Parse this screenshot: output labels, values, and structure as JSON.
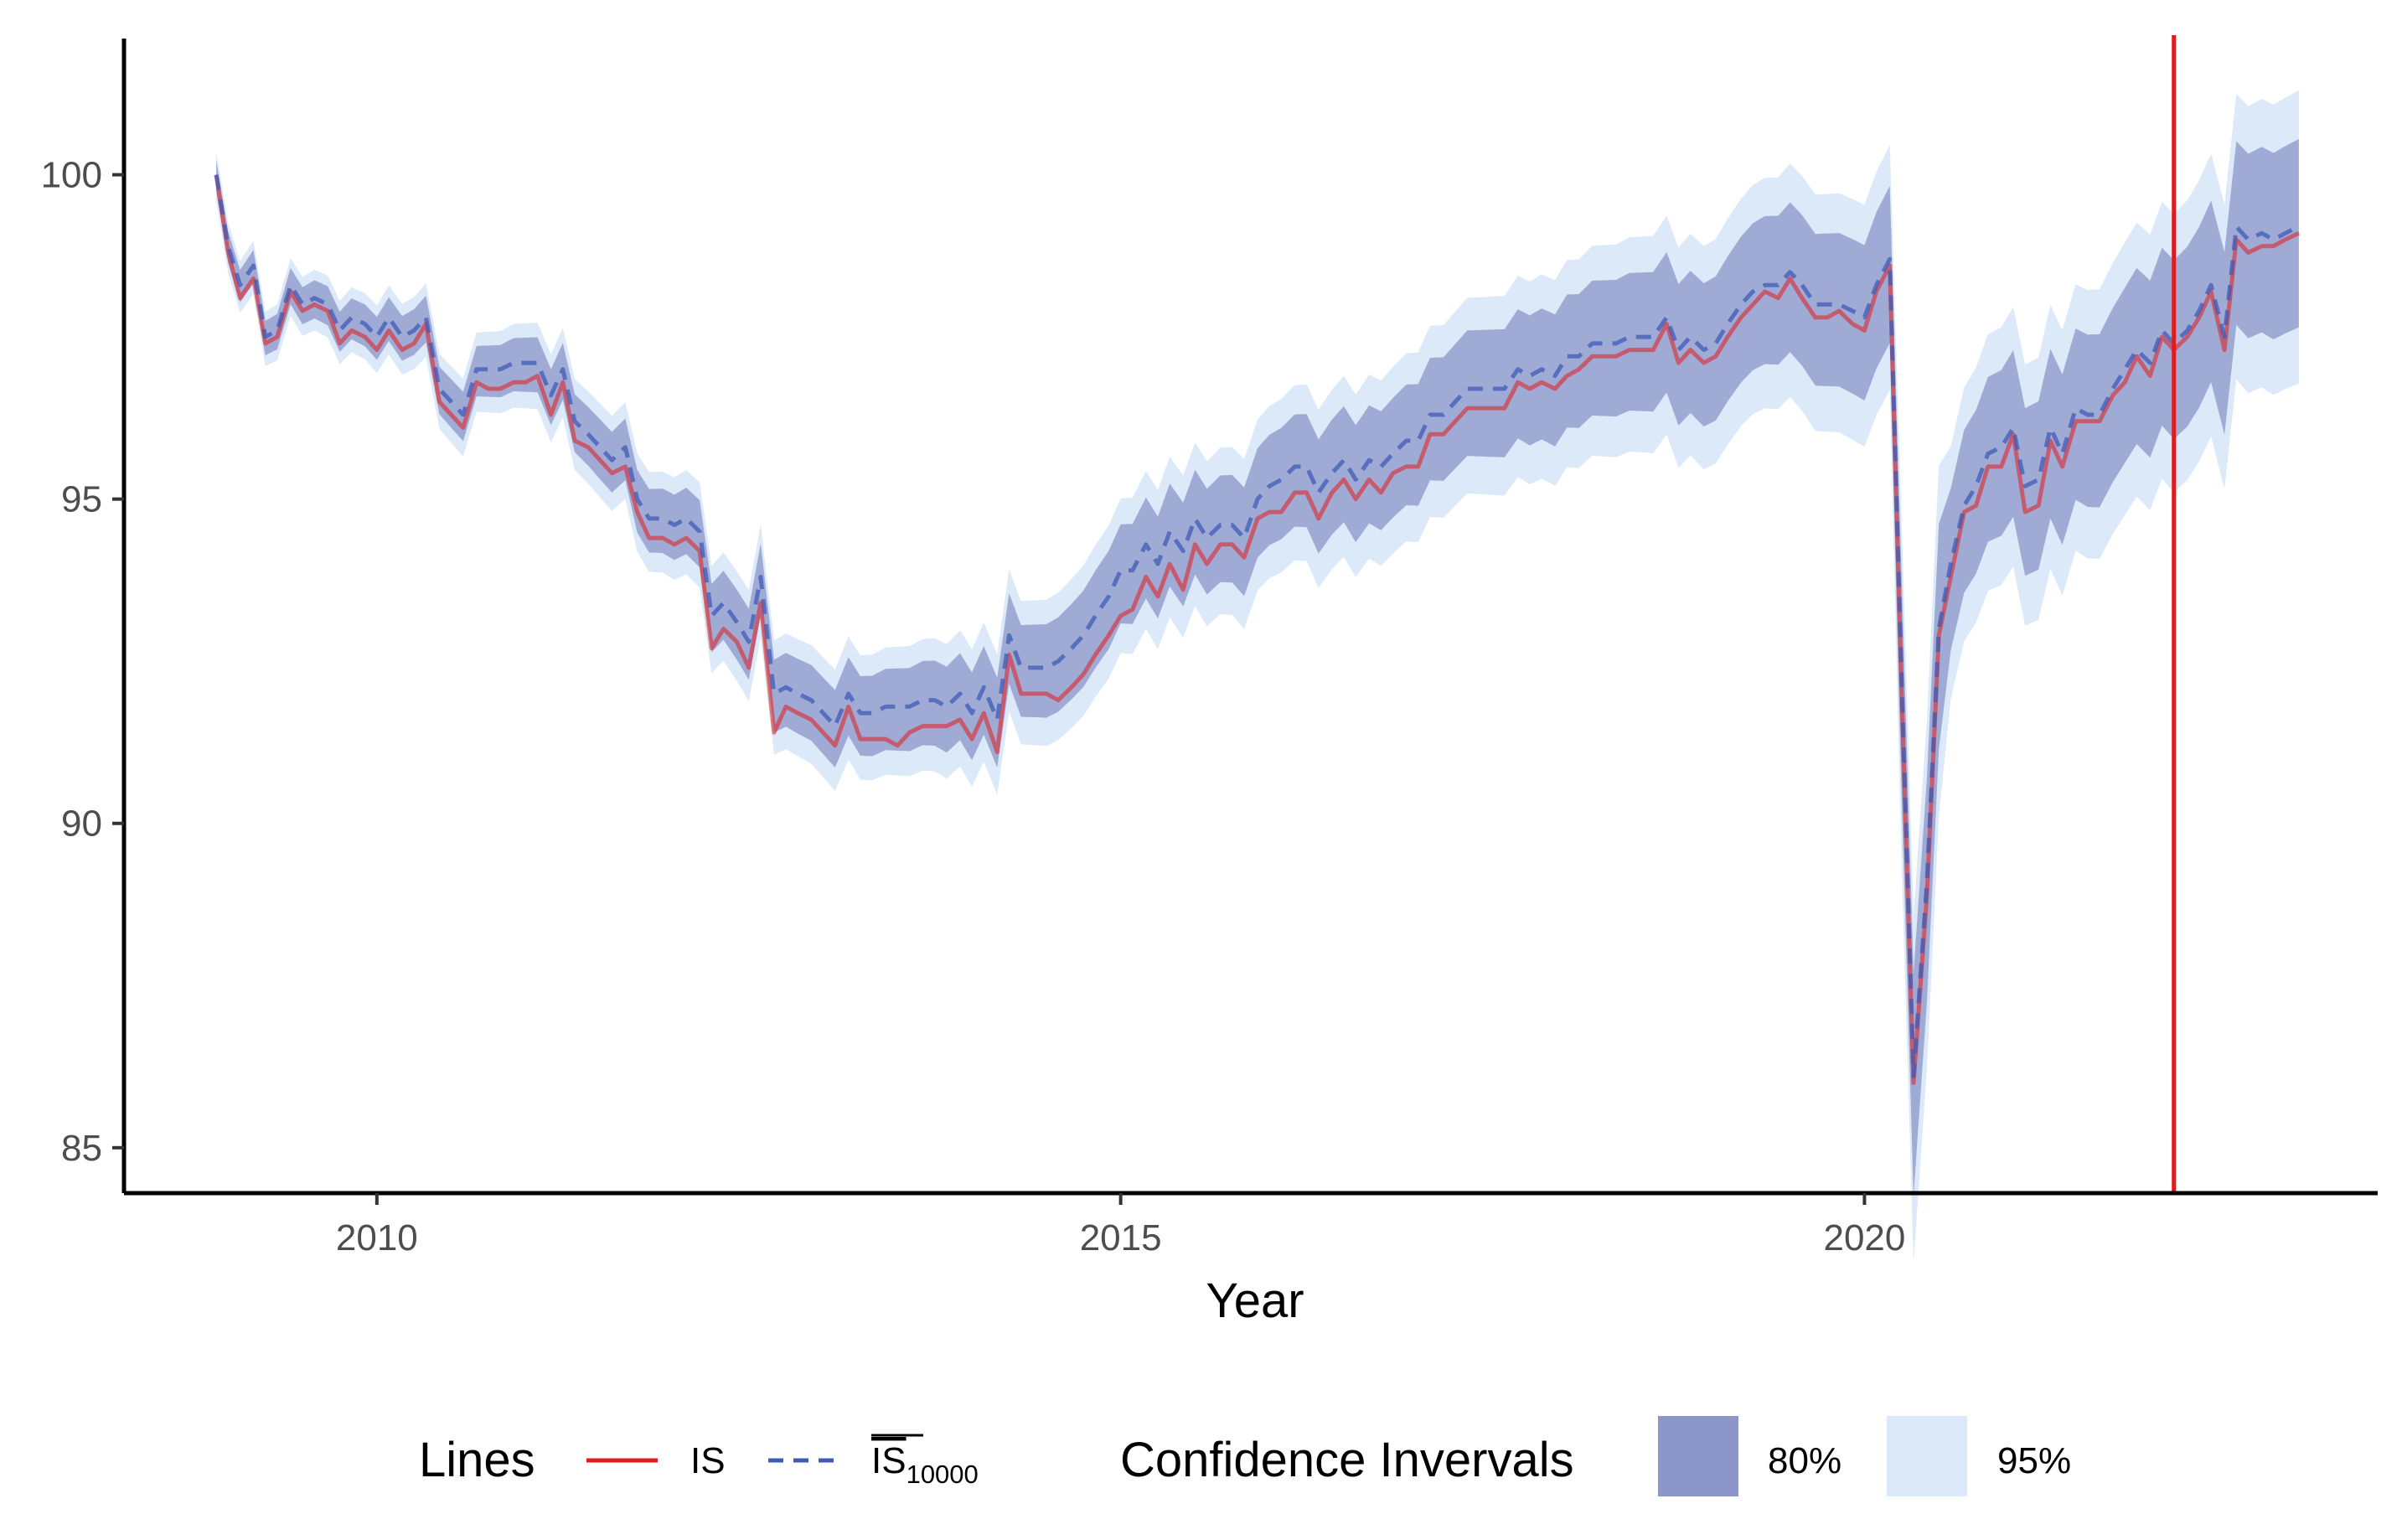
{
  "chart_data": {
    "type": "line",
    "title": "",
    "xlabel": "Year",
    "ylabel": "",
    "xlim": [
      2008.3,
      2023.45
    ],
    "ylim": [
      84.3,
      102.1
    ],
    "x_ticks": [
      2010,
      2015,
      2020
    ],
    "x_tick_labels": [
      "2010",
      "2015",
      "2020"
    ],
    "y_ticks": [
      85,
      90,
      95,
      100
    ],
    "y_tick_labels": [
      "85",
      "90",
      "95",
      "100"
    ],
    "vline": {
      "x": 2022.08,
      "color": "#e31a1c"
    },
    "x": [
      2008.92,
      2009.0,
      2009.08,
      2009.17,
      2009.25,
      2009.33,
      2009.42,
      2009.5,
      2009.58,
      2009.67,
      2009.75,
      2009.83,
      2009.92,
      2010.0,
      2010.08,
      2010.17,
      2010.25,
      2010.33,
      2010.42,
      2010.5,
      2010.58,
      2010.67,
      2010.75,
      2010.83,
      2010.92,
      2011.0,
      2011.08,
      2011.17,
      2011.25,
      2011.33,
      2011.42,
      2011.5,
      2011.58,
      2011.67,
      2011.75,
      2011.83,
      2011.92,
      2012.0,
      2012.08,
      2012.17,
      2012.25,
      2012.33,
      2012.42,
      2012.5,
      2012.58,
      2012.67,
      2012.75,
      2012.83,
      2012.92,
      2013.0,
      2013.08,
      2013.17,
      2013.25,
      2013.33,
      2013.42,
      2013.5,
      2013.58,
      2013.67,
      2013.75,
      2013.83,
      2013.92,
      2014.0,
      2014.08,
      2014.17,
      2014.25,
      2014.33,
      2014.42,
      2014.5,
      2014.58,
      2014.67,
      2014.75,
      2014.83,
      2014.92,
      2015.0,
      2015.08,
      2015.17,
      2015.25,
      2015.33,
      2015.42,
      2015.5,
      2015.58,
      2015.67,
      2015.75,
      2015.83,
      2015.92,
      2016.0,
      2016.08,
      2016.17,
      2016.25,
      2016.33,
      2016.42,
      2016.5,
      2016.58,
      2016.67,
      2016.75,
      2016.83,
      2016.92,
      2017.0,
      2017.08,
      2017.17,
      2017.25,
      2017.33,
      2017.42,
      2017.5,
      2017.58,
      2017.67,
      2017.75,
      2017.83,
      2017.92,
      2018.0,
      2018.08,
      2018.17,
      2018.25,
      2018.33,
      2018.42,
      2018.5,
      2018.58,
      2018.67,
      2018.75,
      2018.83,
      2018.92,
      2019.0,
      2019.08,
      2019.17,
      2019.25,
      2019.33,
      2019.42,
      2019.5,
      2019.58,
      2019.67,
      2019.75,
      2019.83,
      2019.92,
      2020.0,
      2020.08,
      2020.17,
      2020.25,
      2020.33,
      2020.42,
      2020.5,
      2020.58,
      2020.67,
      2020.75,
      2020.83,
      2020.92,
      2021.0,
      2021.08,
      2021.17,
      2021.25,
      2021.33,
      2021.42,
      2021.5,
      2021.58,
      2021.67,
      2021.75,
      2021.83,
      2021.92,
      2022.0,
      2022.08,
      2022.17,
      2022.25,
      2022.33,
      2022.42,
      2022.5,
      2022.58,
      2022.67,
      2022.75,
      2022.83,
      2022.92
    ],
    "series": [
      {
        "name": "IS",
        "color": "#e31a1c",
        "values": [
          100.0,
          98.8,
          98.1,
          98.4,
          97.4,
          97.5,
          98.2,
          97.9,
          98.0,
          97.9,
          97.4,
          97.6,
          97.5,
          97.3,
          97.6,
          97.3,
          97.4,
          97.7,
          96.5,
          96.3,
          96.1,
          96.8,
          96.7,
          96.7,
          96.8,
          96.8,
          96.9,
          96.3,
          96.8,
          95.9,
          95.8,
          95.6,
          95.4,
          95.5,
          94.8,
          94.4,
          94.4,
          94.3,
          94.4,
          94.2,
          92.7,
          93.0,
          92.8,
          92.4,
          93.4,
          91.4,
          91.8,
          91.7,
          91.6,
          91.4,
          91.2,
          91.8,
          91.3,
          91.3,
          91.3,
          91.2,
          91.4,
          91.5,
          91.5,
          91.5,
          91.6,
          91.3,
          91.7,
          91.1,
          92.6,
          92.0,
          92.0,
          92.0,
          91.9,
          92.1,
          92.3,
          92.6,
          92.9,
          93.2,
          93.3,
          93.8,
          93.5,
          94.0,
          93.6,
          94.3,
          94.0,
          94.3,
          94.3,
          94.1,
          94.7,
          94.8,
          94.8,
          95.1,
          95.1,
          94.7,
          95.1,
          95.3,
          95.0,
          95.3,
          95.1,
          95.4,
          95.5,
          95.5,
          96.0,
          96.0,
          96.2,
          96.4,
          96.4,
          96.4,
          96.4,
          96.8,
          96.7,
          96.8,
          96.7,
          96.9,
          97.0,
          97.2,
          97.2,
          97.2,
          97.3,
          97.3,
          97.3,
          97.7,
          97.1,
          97.3,
          97.1,
          97.2,
          97.5,
          97.8,
          98.0,
          98.2,
          98.1,
          98.4,
          98.1,
          97.8,
          97.8,
          97.9,
          97.7,
          97.6,
          98.2,
          98.6,
          92.0,
          86.0,
          88.9,
          92.9,
          93.8,
          94.8,
          94.9,
          95.5,
          95.5,
          96.0,
          94.8,
          94.9,
          95.9,
          95.5,
          96.2,
          96.2,
          96.2,
          96.6,
          96.8,
          97.2,
          96.9,
          97.5,
          97.3,
          97.5,
          97.8,
          98.2,
          97.3,
          99.0,
          98.8,
          98.9,
          98.9,
          99.0,
          99.1
        ]
      },
      {
        "name": "IS̅₁₀₀₀₀",
        "color": "#3f5bb5",
        "values": [
          100.0,
          98.9,
          98.3,
          98.6,
          97.5,
          97.6,
          98.3,
          98.0,
          98.1,
          98.0,
          97.6,
          97.8,
          97.7,
          97.5,
          97.8,
          97.5,
          97.6,
          97.8,
          96.7,
          96.5,
          96.3,
          97.0,
          97.0,
          97.0,
          97.1,
          97.1,
          97.1,
          96.6,
          97.0,
          96.2,
          96.0,
          95.8,
          95.6,
          95.8,
          95.0,
          94.7,
          94.7,
          94.6,
          94.7,
          94.5,
          93.2,
          93.4,
          93.1,
          92.8,
          93.8,
          92.0,
          92.1,
          92.0,
          91.9,
          91.7,
          91.5,
          92.0,
          91.7,
          91.7,
          91.8,
          91.8,
          91.8,
          91.9,
          91.9,
          91.8,
          92.0,
          91.7,
          92.1,
          91.6,
          92.9,
          92.4,
          92.4,
          92.4,
          92.5,
          92.7,
          92.9,
          93.2,
          93.5,
          93.9,
          93.9,
          94.3,
          94.0,
          94.5,
          94.2,
          94.7,
          94.4,
          94.6,
          94.6,
          94.4,
          95.0,
          95.2,
          95.3,
          95.5,
          95.5,
          95.1,
          95.4,
          95.6,
          95.3,
          95.6,
          95.5,
          95.7,
          95.9,
          95.9,
          96.3,
          96.3,
          96.5,
          96.7,
          96.7,
          96.7,
          96.7,
          97.0,
          96.9,
          97.0,
          96.9,
          97.2,
          97.2,
          97.4,
          97.4,
          97.4,
          97.5,
          97.5,
          97.5,
          97.8,
          97.3,
          97.5,
          97.3,
          97.4,
          97.7,
          98.0,
          98.2,
          98.3,
          98.3,
          98.5,
          98.3,
          98.0,
          98.0,
          98.0,
          97.9,
          97.8,
          98.3,
          98.7,
          92.2,
          86.1,
          89.1,
          93.0,
          94.0,
          94.9,
          95.2,
          95.7,
          95.8,
          96.1,
          95.2,
          95.3,
          96.1,
          95.7,
          96.4,
          96.3,
          96.3,
          96.7,
          97.0,
          97.3,
          97.1,
          97.6,
          97.4,
          97.6,
          97.9,
          98.3,
          97.5,
          99.2,
          99.0,
          99.1,
          99.0,
          99.1,
          99.2
        ]
      }
    ],
    "bands": [
      {
        "name": "95%",
        "color": "#dbe9f8",
        "halfwidth_start": 0.35,
        "halfwidth_end": 2.1
      },
      {
        "name": "80%",
        "color": "#8c96c9",
        "halfwidth_start": 0.22,
        "halfwidth_end": 1.35
      }
    ],
    "legend": {
      "position": "bottom",
      "lines_title": "Lines",
      "line_entries": [
        {
          "label": "IS",
          "subscript": ""
        },
        {
          "label": "IS",
          "subscript": "10000"
        }
      ],
      "ci_title": "Confidence Invervals",
      "ci_entries": [
        "80%",
        "95%"
      ]
    }
  }
}
